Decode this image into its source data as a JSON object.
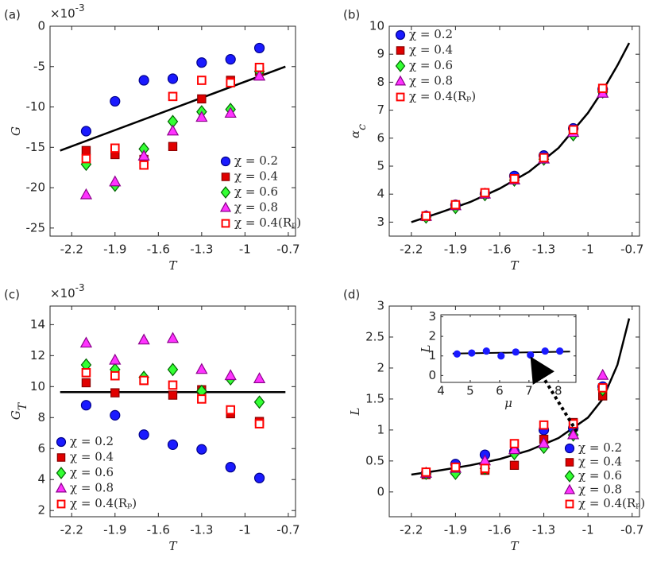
{
  "chart_data": [
    {
      "type": "scatter",
      "panel_label": "(a)",
      "x_label": "T",
      "y_label": "G",
      "y_multiplier": "×10",
      "y_multiplier_exponent": "-3",
      "xlim": [
        -2.35,
        -0.65
      ],
      "xticks": [
        -2.2,
        -1.9,
        -1.6,
        -1.3,
        -1,
        -0.7
      ],
      "ylim": [
        -26,
        0
      ],
      "yticks": [
        -25,
        -20,
        -15,
        -10,
        -5,
        0
      ],
      "grid": false,
      "legend": "lower right",
      "x": [
        -2.1,
        -1.9,
        -1.7,
        -1.5,
        -1.3,
        -1.1,
        -0.9
      ],
      "series": [
        {
          "name": "χ = 0.2",
          "marker": "circle",
          "color": "#1a1aff",
          "edgecolor": "#00008b",
          "values": [
            -13.0,
            -9.3,
            -6.7,
            -6.5,
            -4.5,
            -4.1,
            -2.7
          ]
        },
        {
          "name": "χ = 0.4",
          "marker": "square",
          "color": "#e00000",
          "edgecolor": "#8b0000",
          "values": [
            -15.4,
            -15.9,
            -16.5,
            -14.9,
            -9.0,
            -6.7,
            -5.6
          ]
        },
        {
          "name": "χ = 0.6",
          "marker": "diamond",
          "color": "#33ff33",
          "edgecolor": "#006400",
          "values": [
            -17.1,
            -19.7,
            -15.2,
            -11.8,
            -10.6,
            -10.3,
            -5.6
          ]
        },
        {
          "name": "χ = 0.8",
          "marker": "triangle",
          "color": "#ff33ff",
          "edgecolor": "#8b008b",
          "values": [
            -20.9,
            -19.3,
            -16.1,
            -13.0,
            -11.3,
            -10.8,
            -6.2
          ]
        },
        {
          "name": "χ = 0.4(Rₚ)",
          "marker": "open-square",
          "color": "#ff0000",
          "edgecolor": "#ff0000",
          "values": [
            -16.4,
            -15.1,
            -17.2,
            -8.7,
            -6.7,
            -7.0,
            -5.1
          ]
        }
      ],
      "fit": {
        "x": [
          -2.28,
          -0.72
        ],
        "values": [
          -15.4,
          -5.0
        ]
      }
    },
    {
      "type": "scatter",
      "panel_label": "(b)",
      "x_label": "T",
      "y_label": "α",
      "y_label_sub": "c",
      "xlim": [
        -2.35,
        -0.65
      ],
      "xticks": [
        -2.2,
        -1.9,
        -1.6,
        -1.3,
        -1,
        -0.7
      ],
      "ylim": [
        2.5,
        10
      ],
      "yticks": [
        3,
        4,
        5,
        6,
        7,
        8,
        9,
        10
      ],
      "grid": false,
      "legend": "upper left",
      "x": [
        -2.1,
        -1.9,
        -1.7,
        -1.5,
        -1.3,
        -1.1,
        -0.9
      ],
      "series": [
        {
          "name": "χ = 0.2",
          "marker": "circle",
          "color": "#1a1aff",
          "edgecolor": "#00008b",
          "values": [
            3.22,
            3.62,
            4.02,
            4.65,
            5.38,
            6.35,
            7.75
          ]
        },
        {
          "name": "χ = 0.4",
          "marker": "square",
          "color": "#e00000",
          "edgecolor": "#8b0000",
          "values": [
            3.2,
            3.6,
            4.0,
            4.55,
            5.3,
            6.28,
            7.7
          ]
        },
        {
          "name": "χ = 0.6",
          "marker": "diamond",
          "color": "#33ff33",
          "edgecolor": "#006400",
          "values": [
            3.18,
            3.52,
            3.98,
            4.5,
            5.25,
            6.12,
            7.65
          ]
        },
        {
          "name": "χ = 0.8",
          "marker": "triangle",
          "color": "#ff33ff",
          "edgecolor": "#8b008b",
          "values": [
            3.2,
            3.58,
            4.0,
            4.5,
            5.25,
            6.2,
            7.6
          ]
        },
        {
          "name": "χ = 0.4(Rₚ)",
          "marker": "open-square",
          "color": "#ff0000",
          "edgecolor": "#ff0000",
          "values": [
            3.22,
            3.62,
            4.05,
            4.55,
            5.3,
            6.3,
            7.78
          ]
        }
      ],
      "fit": {
        "x": [
          -2.2,
          -2.0,
          -1.8,
          -1.6,
          -1.4,
          -1.2,
          -1.0,
          -0.9,
          -0.8,
          -0.72
        ],
        "values": [
          3.0,
          3.35,
          3.72,
          4.2,
          4.8,
          5.65,
          6.9,
          7.7,
          8.6,
          9.4
        ]
      }
    },
    {
      "type": "scatter",
      "panel_label": "(c)",
      "x_label": "T",
      "y_label": "G",
      "y_label_sub": "T",
      "y_multiplier": "×10",
      "y_multiplier_exponent": "-3",
      "xlim": [
        -2.35,
        -0.65
      ],
      "xticks": [
        -2.2,
        -1.9,
        -1.6,
        -1.3,
        -1,
        -0.7
      ],
      "ylim": [
        1.6,
        15.2
      ],
      "yticks": [
        2,
        4,
        6,
        8,
        10,
        12,
        14
      ],
      "grid": false,
      "legend": "lower left",
      "x": [
        -2.1,
        -1.9,
        -1.7,
        -1.5,
        -1.3,
        -1.1,
        -0.9
      ],
      "series": [
        {
          "name": "χ = 0.2",
          "marker": "circle",
          "color": "#1a1aff",
          "edgecolor": "#00008b",
          "values": [
            8.8,
            8.15,
            6.9,
            6.25,
            5.95,
            4.8,
            4.1
          ]
        },
        {
          "name": "χ = 0.4",
          "marker": "square",
          "color": "#e00000",
          "edgecolor": "#8b0000",
          "values": [
            10.25,
            9.6,
            10.4,
            9.45,
            9.8,
            8.25,
            7.75
          ]
        },
        {
          "name": "χ = 0.6",
          "marker": "diamond",
          "color": "#33ff33",
          "edgecolor": "#006400",
          "values": [
            11.4,
            11.1,
            10.6,
            11.1,
            9.7,
            10.5,
            9.0
          ]
        },
        {
          "name": "χ = 0.8",
          "marker": "triangle",
          "color": "#ff33ff",
          "edgecolor": "#8b008b",
          "values": [
            12.8,
            11.7,
            13.0,
            13.1,
            11.1,
            10.7,
            10.5
          ]
        },
        {
          "name": "χ = 0.4(Rₚ)",
          "marker": "open-square",
          "color": "#ff0000",
          "edgecolor": "#ff0000",
          "values": [
            10.9,
            10.7,
            10.4,
            10.1,
            9.2,
            8.5,
            7.6
          ]
        }
      ],
      "fit": {
        "x": [
          -2.28,
          -0.72
        ],
        "values": [
          9.64,
          9.64
        ]
      }
    },
    {
      "type": "scatter",
      "panel_label": "(d)",
      "x_label": "T",
      "y_label": "L",
      "xlim": [
        -2.35,
        -0.65
      ],
      "xticks": [
        -2.2,
        -1.9,
        -1.6,
        -1.3,
        -1,
        -0.7
      ],
      "ylim": [
        -0.4,
        3
      ],
      "yticks": [
        0,
        0.5,
        1,
        1.5,
        2,
        2.5,
        3
      ],
      "grid": false,
      "legend": "lower right",
      "x": [
        -2.1,
        -1.9,
        -1.7,
        -1.5,
        -1.3,
        -1.1,
        -0.9
      ],
      "series": [
        {
          "name": "χ = 0.2",
          "marker": "circle",
          "color": "#1a1aff",
          "edgecolor": "#00008b",
          "values": [
            0.3,
            0.45,
            0.6,
            0.65,
            1.0,
            1.03,
            1.7
          ]
        },
        {
          "name": "χ = 0.4",
          "marker": "square",
          "color": "#e00000",
          "edgecolor": "#8b0000",
          "values": [
            0.28,
            0.35,
            0.35,
            0.43,
            0.85,
            1.12,
            1.55
          ]
        },
        {
          "name": "χ = 0.6",
          "marker": "diamond",
          "color": "#33ff33",
          "edgecolor": "#006400",
          "values": [
            0.3,
            0.3,
            0.38,
            0.62,
            0.72,
            0.92,
            1.65
          ]
        },
        {
          "name": "χ = 0.8",
          "marker": "triangle",
          "color": "#ff33ff",
          "edgecolor": "#8b008b",
          "values": [
            0.3,
            0.38,
            0.5,
            0.68,
            0.78,
            0.92,
            1.88
          ]
        },
        {
          "name": "χ = 0.4(Rₚ)",
          "marker": "open-square",
          "color": "#ff0000",
          "edgecolor": "#ff0000",
          "values": [
            0.32,
            0.4,
            0.38,
            0.78,
            1.08,
            1.1,
            1.68
          ]
        }
      ],
      "fit": {
        "x": [
          -2.2,
          -2.0,
          -1.8,
          -1.6,
          -1.4,
          -1.2,
          -1.0,
          -0.9,
          -0.8,
          -0.72
        ],
        "values": [
          0.28,
          0.35,
          0.43,
          0.53,
          0.67,
          0.87,
          1.2,
          1.5,
          2.05,
          2.8
        ]
      }
    },
    {
      "type": "scatter",
      "x_label": "μ",
      "y_label": "L",
      "xlim": [
        4,
        8.6
      ],
      "xticks": [
        4,
        5,
        6,
        7,
        8
      ],
      "ylim": [
        -0.35,
        3.1
      ],
      "yticks": [
        0,
        1,
        2,
        3
      ],
      "grid": false,
      "x": [
        4.55,
        5.05,
        5.55,
        6.05,
        6.55,
        7.05,
        7.55,
        8.05
      ],
      "series": [
        {
          "marker": "circle",
          "color": "#1a1aff",
          "edgecolor": "#1a1aff",
          "values": [
            1.1,
            1.15,
            1.25,
            1.0,
            1.2,
            1.05,
            1.25,
            1.25
          ]
        }
      ],
      "fit": {
        "x": [
          4.4,
          8.4
        ],
        "values": [
          1.12,
          1.22
        ]
      }
    }
  ]
}
